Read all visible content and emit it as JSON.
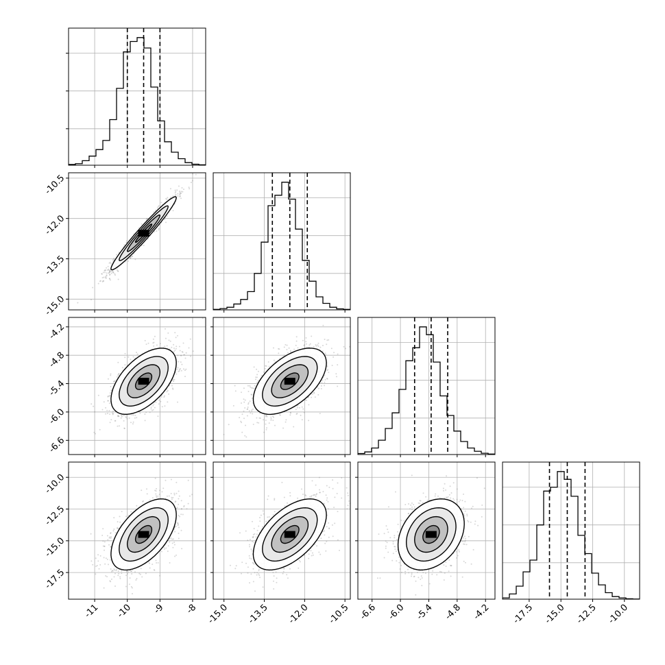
{
  "chart_data": {
    "type": "corner",
    "params": [
      {
        "mean": -9.5,
        "sd": 0.5,
        "q16": -10.0,
        "q50": -9.5,
        "q84": -9.0,
        "range": [
          -11.8,
          -7.6
        ],
        "ticks": [
          "-11",
          "-10",
          "-9",
          "-8"
        ],
        "ticks_at": [
          -11,
          -10,
          -9,
          -8
        ],
        "hist": [
          0.006,
          0.012,
          0.035,
          0.07,
          0.12,
          0.19,
          0.35,
          0.59,
          0.87,
          0.95,
          0.98,
          0.9,
          0.6,
          0.34,
          0.18,
          0.1,
          0.05,
          0.02,
          0.008,
          0.003
        ]
      },
      {
        "mean": -12.55,
        "sd": 0.68,
        "q16": -13.2,
        "q50": -12.55,
        "q84": -11.9,
        "range": [
          -15.4,
          -10.3
        ],
        "ticks": [
          "-15.0",
          "-13.5",
          "-12.0",
          "-10.5"
        ],
        "ticks_at": [
          -15.0,
          -13.5,
          -12.0,
          -10.5
        ],
        "hist": [
          0.004,
          0.01,
          0.02,
          0.045,
          0.08,
          0.14,
          0.28,
          0.52,
          0.8,
          0.88,
          0.98,
          0.85,
          0.62,
          0.38,
          0.22,
          0.1,
          0.05,
          0.02,
          0.008,
          0.004
        ]
      },
      {
        "mean": -5.35,
        "sd": 0.35,
        "q16": -5.7,
        "q50": -5.35,
        "q84": -5.0,
        "range": [
          -6.9,
          -4.0
        ],
        "ticks": [
          "-6.6",
          "-6.0",
          "-5.4",
          "-4.8",
          "-4.2"
        ],
        "ticks_at": [
          -6.6,
          -6.0,
          -5.4,
          -4.8,
          -4.2
        ],
        "hist": [
          0.008,
          0.02,
          0.05,
          0.11,
          0.2,
          0.32,
          0.5,
          0.72,
          0.82,
          0.98,
          0.92,
          0.71,
          0.45,
          0.3,
          0.18,
          0.1,
          0.05,
          0.025,
          0.01,
          0.004
        ]
      },
      {
        "mean": -14.5,
        "sd": 1.4,
        "q16": -15.9,
        "q50": -14.5,
        "q84": -13.1,
        "range": [
          -19.6,
          -8.8
        ],
        "ticks": [
          "-17.5",
          "-15.0",
          "-12.5",
          "-10.0"
        ],
        "ticks_at": [
          -17.5,
          -15.0,
          -12.5,
          -10.0
        ],
        "hist": [
          0.01,
          0.04,
          0.1,
          0.21,
          0.3,
          0.57,
          0.83,
          0.86,
          0.98,
          0.92,
          0.79,
          0.49,
          0.35,
          0.2,
          0.11,
          0.05,
          0.02,
          0.01,
          0.003,
          0.001
        ]
      }
    ],
    "correlations": [
      [
        1.0,
        0.97,
        0.55,
        0.55
      ],
      [
        0.97,
        1.0,
        0.55,
        0.55
      ],
      [
        0.55,
        0.55,
        1.0,
        0.3
      ],
      [
        0.55,
        0.55,
        0.3,
        1.0
      ]
    ],
    "quantiles": [
      0.16,
      0.5,
      0.84
    ],
    "contour_levels_sigma": [
      0.5,
      1.0,
      1.5,
      2.0
    ],
    "grid": true,
    "colors": {
      "points": "#8c8c8c",
      "contour": "#000000",
      "hist": "#000000",
      "grid": "#b0b0b0"
    }
  }
}
